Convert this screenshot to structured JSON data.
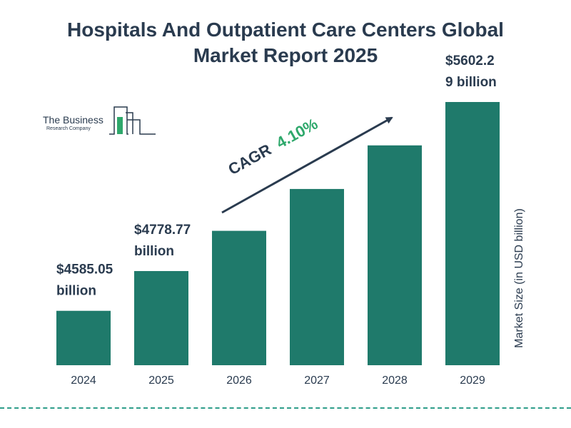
{
  "chart_data": {
    "type": "bar",
    "title_line1": "Hospitals And Outpatient Care Centers Global",
    "title_line2": "Market Report 2025",
    "categories": [
      "2024",
      "2025",
      "2026",
      "2027",
      "2028",
      "2029"
    ],
    "values": [
      4585.05,
      4778.77,
      4974.7,
      5178.6,
      5391.0,
      5602.29
    ],
    "data_labels": [
      [
        "$4585.05",
        "billion"
      ],
      [
        "$4778.77",
        "billion"
      ],
      null,
      null,
      null,
      [
        "$5602.2",
        "9 billion"
      ]
    ],
    "ylabel": "Market Size (in USD billion)",
    "xlabel": "",
    "ylim": [
      4320,
      5602.29
    ],
    "bar_color": "#1f7a6b",
    "grid": false,
    "annotation": {
      "prefix": "CAGR",
      "value": "4.10%",
      "prefix_color": "#2a3b4f",
      "value_color": "#2ea86b"
    }
  },
  "logo": {
    "name_line1": "The Business",
    "name_line2": "Research Company",
    "accent_color": "#2ea86b"
  },
  "colors": {
    "text": "#2a3b4f",
    "divider": "#2e9e8a"
  }
}
